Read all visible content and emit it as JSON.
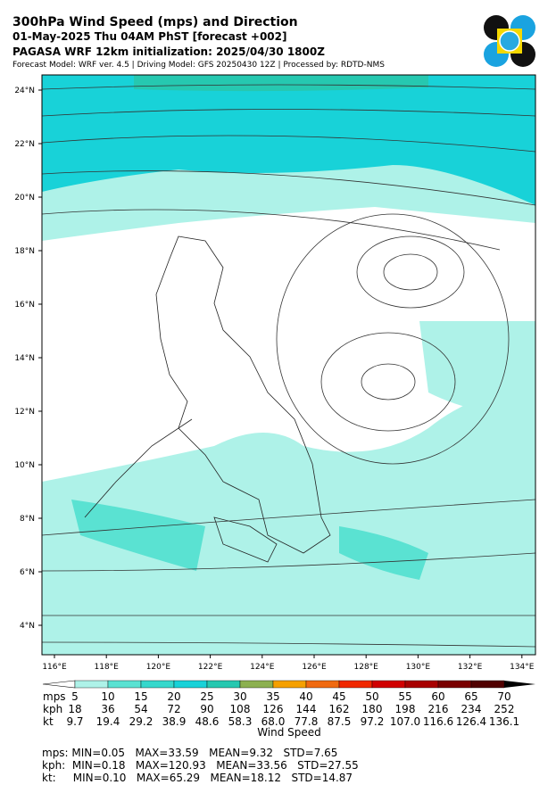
{
  "header": {
    "title": "300hPa Wind Speed (mps) and Direction",
    "subtitle": "01-May-2025 Thu 04AM PhST [forecast +002]",
    "initialization": "PAGASA WRF 12km initialization: 2025/04/30 1800Z",
    "credits": "Forecast Model: WRF ver. 4.5 | Driving Model: GFS 20250430 12Z | Processed by: RDTD-NMS"
  },
  "map": {
    "lat_labels": [
      "24°N",
      "22°N",
      "20°N",
      "18°N",
      "16°N",
      "14°N",
      "12°N",
      "10°N",
      "8°N",
      "6°N",
      "4°N"
    ],
    "lon_labels": [
      "116°E",
      "118°E",
      "120°E",
      "122°E",
      "124°E",
      "126°E",
      "128°E",
      "130°E",
      "132°E",
      "134°E"
    ]
  },
  "colorbar": {
    "label": "Wind Speed",
    "colors": [
      "#aef2e8",
      "#5ae2d2",
      "#36d8cc",
      "#18d2d8",
      "#26c8b0",
      "#8cb050",
      "#f5a000",
      "#f06a10",
      "#f02800",
      "#d00000",
      "#a80000",
      "#7a0000",
      "#500000"
    ],
    "rows": [
      {
        "unit": "mps",
        "values": [
          "5",
          "10",
          "15",
          "20",
          "25",
          "30",
          "35",
          "40",
          "45",
          "50",
          "55",
          "60",
          "65",
          "70"
        ]
      },
      {
        "unit": "kph",
        "values": [
          "18",
          "36",
          "54",
          "72",
          "90",
          "108",
          "126",
          "144",
          "162",
          "180",
          "198",
          "216",
          "234",
          "252"
        ]
      },
      {
        "unit": "kt",
        "values": [
          "9.7",
          "19.4",
          "29.2",
          "38.9",
          "48.6",
          "58.3",
          "68.0",
          "77.8",
          "87.5",
          "97.2",
          "107.0",
          "116.6",
          "126.4",
          "136.1"
        ]
      }
    ]
  },
  "stats": [
    "mps: MIN=0.05   MAX=33.59   MEAN=9.32   STD=7.65",
    "kph:  MIN=0.18   MAX=120.93   MEAN=33.56   STD=27.55",
    "kt:     MIN=0.10   MAX=65.29   MEAN=18.12   STD=14.87"
  ]
}
